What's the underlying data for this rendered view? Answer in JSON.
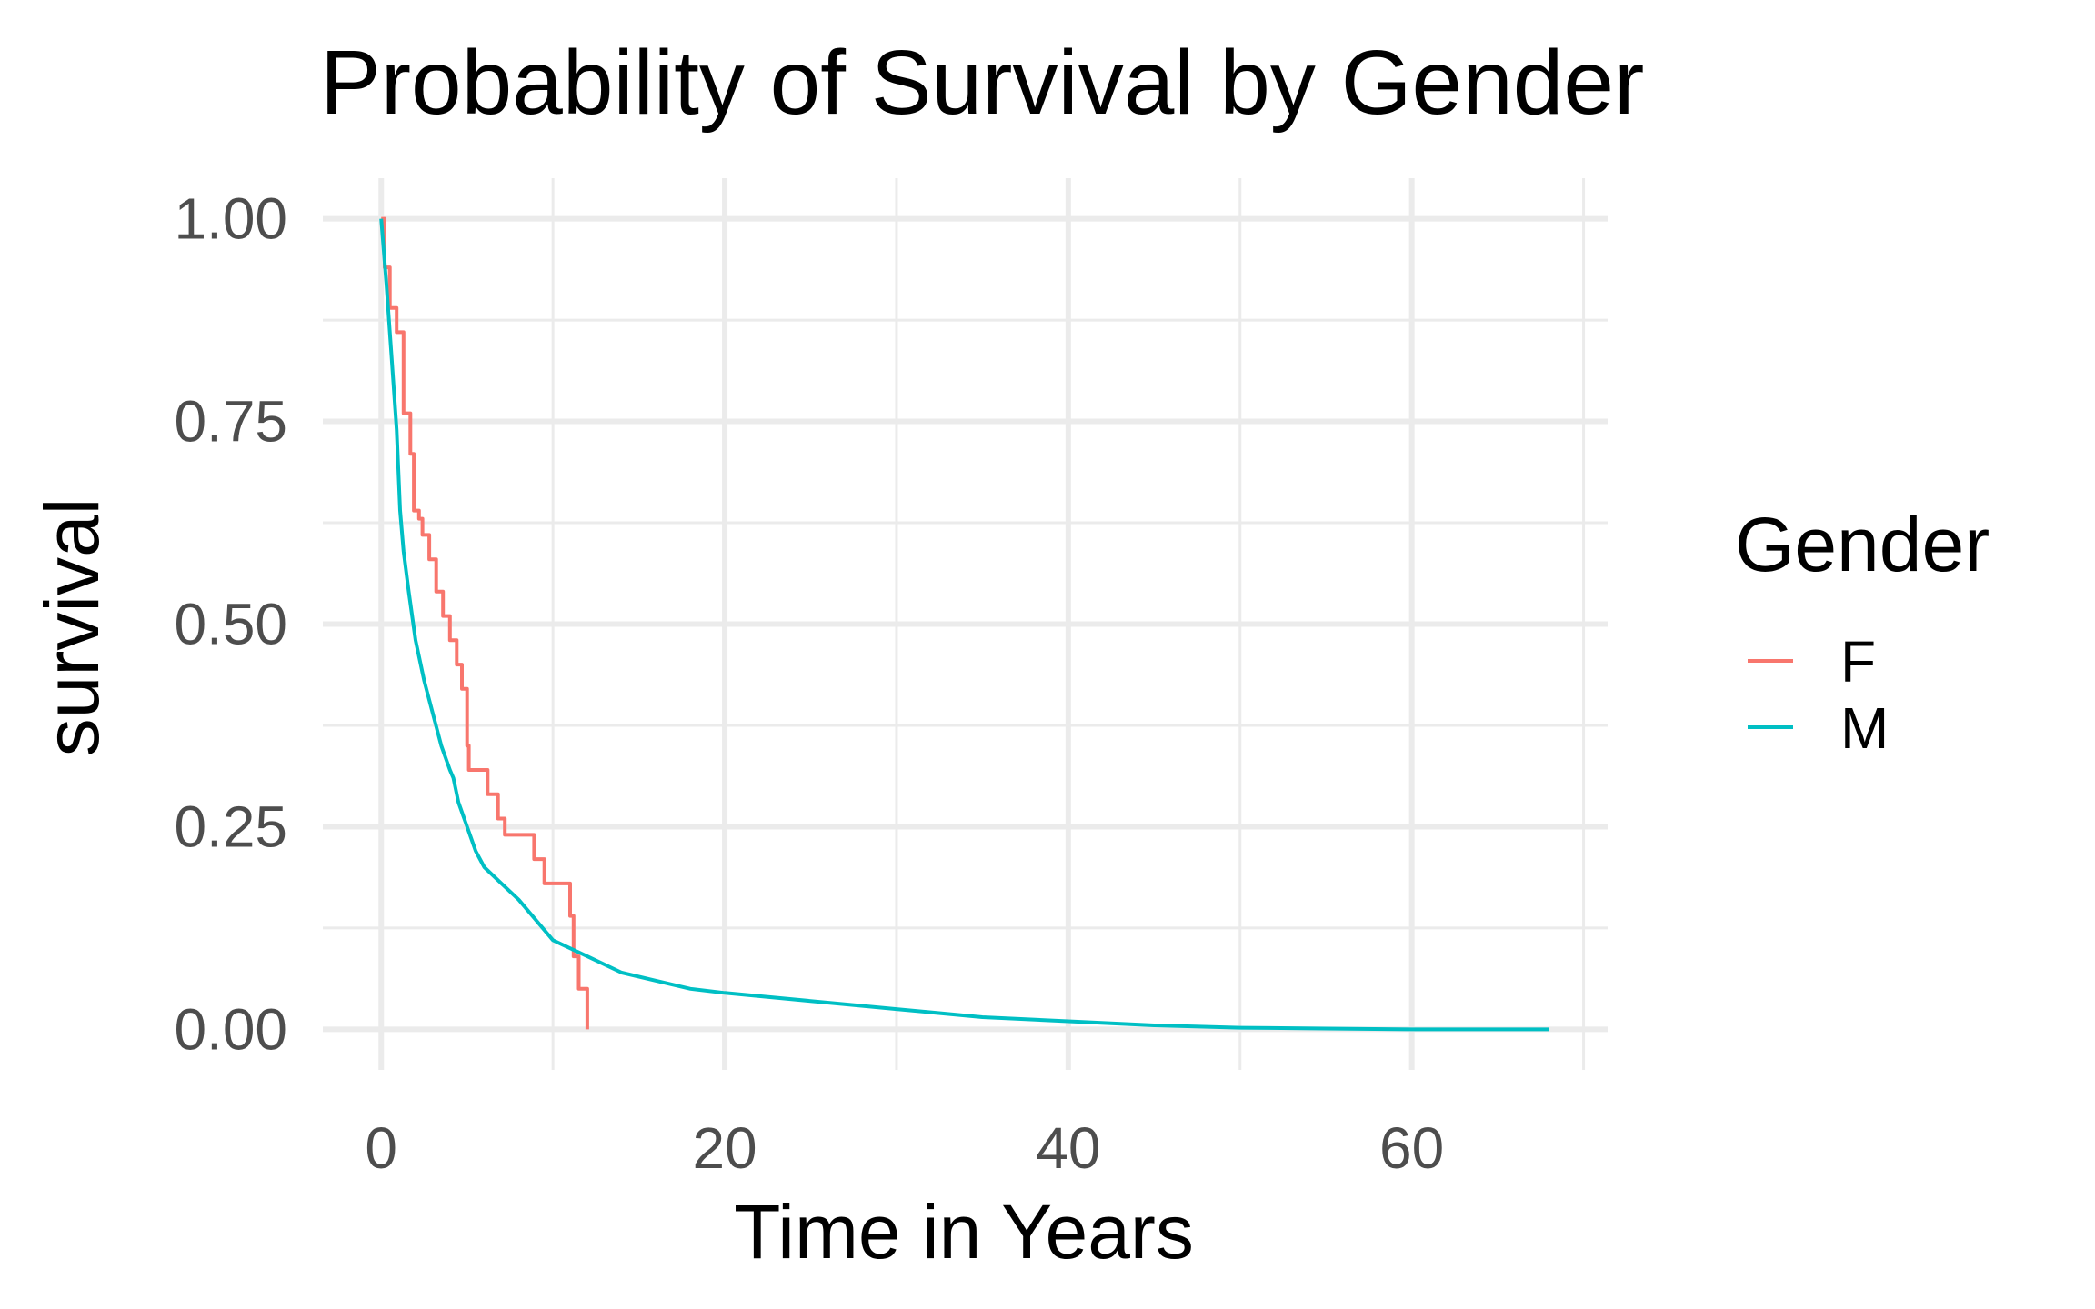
{
  "chart_data": {
    "type": "line",
    "title": "Probability of Survival by Gender",
    "xlabel": "Time in Years",
    "ylabel": "survival",
    "xlim": [
      -3.4,
      71.4
    ],
    "ylim": [
      -0.05,
      1.05
    ],
    "x_ticks": [
      0,
      20,
      40,
      60
    ],
    "y_ticks": [
      0.0,
      0.25,
      0.5,
      0.75,
      1.0
    ],
    "x_minor": [
      10,
      30,
      50,
      70
    ],
    "y_minor": [
      0.125,
      0.375,
      0.625,
      0.875
    ],
    "x_tick_labels": [
      "0",
      "20",
      "40",
      "60"
    ],
    "y_tick_labels": [
      "0.00",
      "0.25",
      "0.50",
      "0.75",
      "1.00"
    ],
    "grid": true,
    "legend": {
      "title": "Gender",
      "position": "right",
      "entries": [
        "F",
        "M"
      ]
    },
    "series": [
      {
        "name": "F",
        "color": "#F8766D",
        "step": true,
        "x": [
          0,
          0.2,
          0.5,
          0.9,
          1.3,
          1.7,
          1.9,
          2.2,
          2.4,
          2.8,
          3.2,
          3.6,
          4.0,
          4.4,
          4.7,
          5.0,
          5.1,
          5.4,
          6.2,
          6.8,
          7.2,
          8.9,
          9.5,
          11.0,
          11.2,
          11.5,
          12.0
        ],
        "y": [
          1.0,
          0.94,
          0.89,
          0.86,
          0.76,
          0.71,
          0.64,
          0.63,
          0.61,
          0.58,
          0.54,
          0.51,
          0.48,
          0.45,
          0.42,
          0.35,
          0.32,
          0.32,
          0.29,
          0.26,
          0.24,
          0.21,
          0.18,
          0.14,
          0.09,
          0.05,
          0.0
        ]
      },
      {
        "name": "M",
        "color": "#00BFC4",
        "step": false,
        "x": [
          0,
          0.3,
          0.6,
          0.9,
          1.1,
          1.3,
          1.6,
          2.0,
          2.5,
          3.0,
          3.5,
          4.0,
          4.2,
          4.5,
          5.0,
          5.5,
          6.0,
          7.0,
          8.0,
          10.0,
          12.0,
          14.0,
          16.0,
          18.0,
          20.0,
          25.0,
          30.0,
          35.0,
          40.0,
          45.0,
          50.0,
          55.0,
          60.0,
          65.0,
          68.0
        ],
        "y": [
          1.0,
          0.92,
          0.83,
          0.74,
          0.64,
          0.59,
          0.54,
          0.48,
          0.43,
          0.39,
          0.35,
          0.32,
          0.31,
          0.28,
          0.25,
          0.22,
          0.2,
          0.18,
          0.16,
          0.11,
          0.09,
          0.07,
          0.06,
          0.05,
          0.045,
          0.035,
          0.025,
          0.015,
          0.01,
          0.005,
          0.002,
          0.001,
          0.0,
          0.0,
          0.0
        ]
      }
    ]
  }
}
